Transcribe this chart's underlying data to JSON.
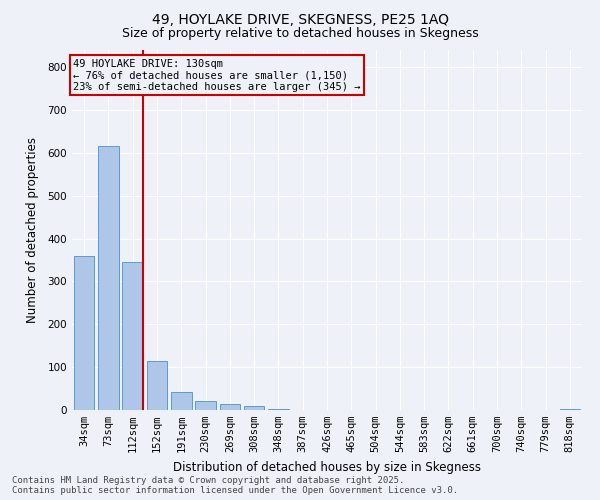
{
  "title1": "49, HOYLAKE DRIVE, SKEGNESS, PE25 1AQ",
  "title2": "Size of property relative to detached houses in Skegness",
  "xlabel": "Distribution of detached houses by size in Skegness",
  "ylabel": "Number of detached properties",
  "categories": [
    "34sqm",
    "73sqm",
    "112sqm",
    "152sqm",
    "191sqm",
    "230sqm",
    "269sqm",
    "308sqm",
    "348sqm",
    "387sqm",
    "426sqm",
    "465sqm",
    "504sqm",
    "544sqm",
    "583sqm",
    "622sqm",
    "661sqm",
    "700sqm",
    "740sqm",
    "779sqm",
    "818sqm"
  ],
  "values": [
    360,
    615,
    345,
    115,
    42,
    20,
    15,
    10,
    2,
    0,
    0,
    0,
    0,
    0,
    0,
    0,
    0,
    0,
    0,
    0,
    2
  ],
  "bar_color": "#aec6e8",
  "bar_edge_color": "#5b9bd5",
  "vline_index": 2,
  "vline_color": "#cc0000",
  "annotation_text": "49 HOYLAKE DRIVE: 130sqm\n← 76% of detached houses are smaller (1,150)\n23% of semi-detached houses are larger (345) →",
  "annotation_box_edge_color": "#cc0000",
  "ylim": [
    0,
    840
  ],
  "yticks": [
    0,
    100,
    200,
    300,
    400,
    500,
    600,
    700,
    800
  ],
  "footer1": "Contains HM Land Registry data © Crown copyright and database right 2025.",
  "footer2": "Contains public sector information licensed under the Open Government Licence v3.0.",
  "bg_color": "#eef2f8",
  "grid_color": "#ffffff",
  "title1_fontsize": 10,
  "title2_fontsize": 9,
  "axis_label_fontsize": 8.5,
  "tick_fontsize": 7.5,
  "annotation_fontsize": 7.5,
  "footer_fontsize": 6.5
}
